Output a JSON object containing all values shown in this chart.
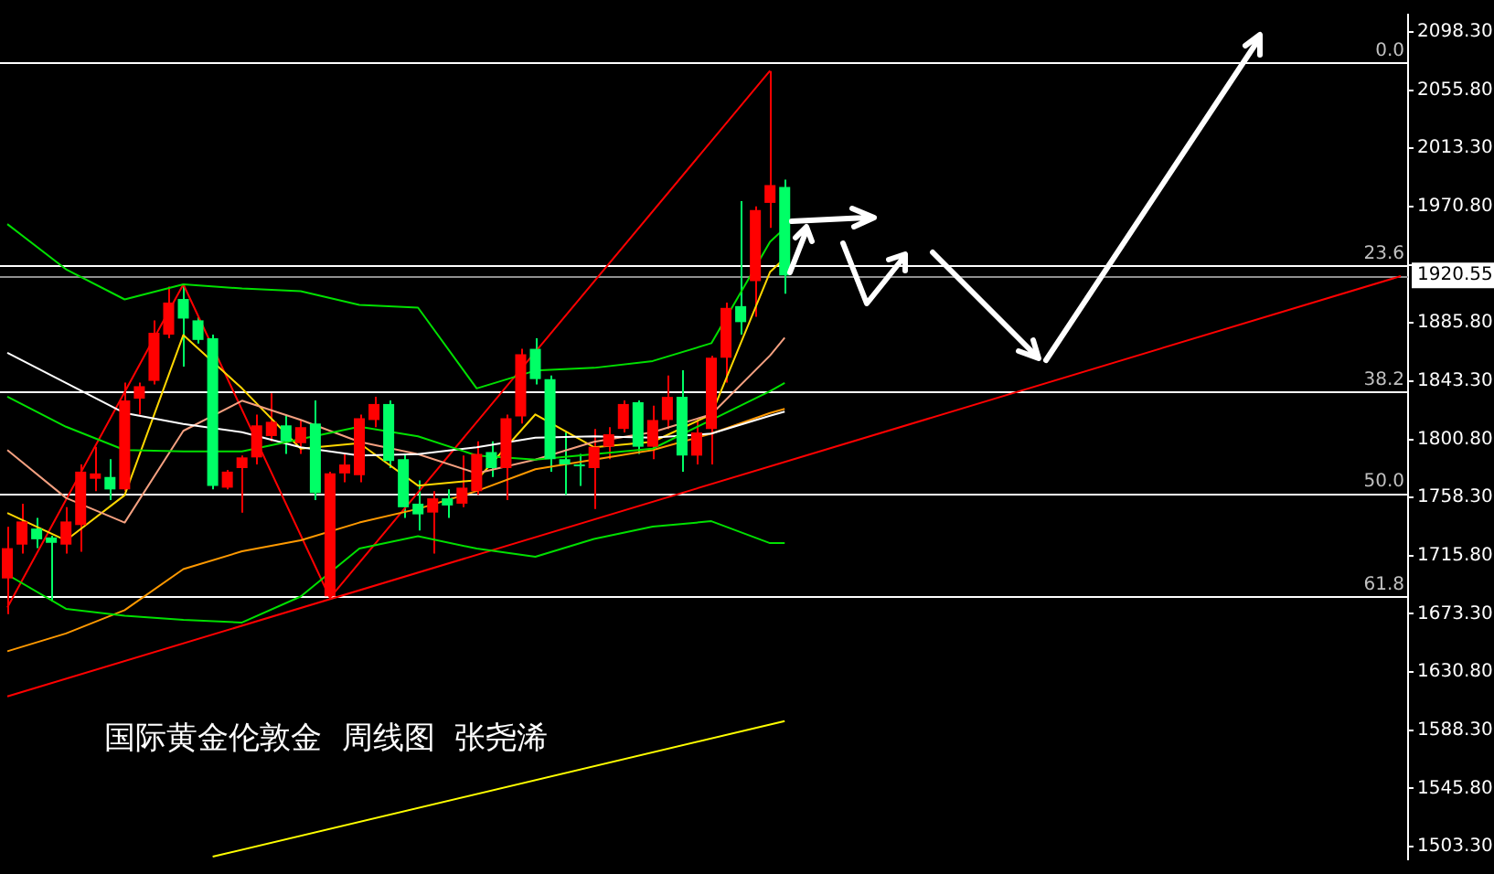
{
  "chart_data": {
    "type": "candlestick",
    "title": "国际黄金伦敦金  周线图  张尧浠",
    "categories": [
      null,
      null,
      null,
      null,
      null,
      null,
      null,
      null,
      null,
      null,
      null,
      null,
      null,
      null,
      null,
      null,
      null,
      null,
      null,
      null,
      null,
      null,
      null,
      null,
      null,
      null,
      null,
      null,
      null,
      null,
      null,
      null,
      null,
      null,
      null,
      null,
      null,
      null,
      null,
      null,
      null,
      null,
      null,
      null,
      null,
      null,
      null,
      null,
      null,
      null,
      null,
      null,
      null,
      null,
      null,
      null,
      null,
      null,
      null,
      null,
      null,
      null,
      null,
      null,
      null,
      null,
      null,
      null,
      null,
      null,
      null,
      null,
      null,
      null,
      null,
      null,
      null,
      null,
      null,
      null,
      null,
      null,
      null,
      null,
      null,
      null,
      null,
      null,
      null,
      null,
      null,
      null,
      null,
      null,
      null,
      null
    ],
    "ohlc": [
      [
        1699.2,
        1736.9,
        1673.2,
        1721.3
      ],
      [
        1723.9,
        1753.8,
        1717.4,
        1740.8
      ],
      [
        1735.6,
        1743.4,
        1721.3,
        1727.8
      ],
      [
        1729.1,
        1730.4,
        1682.3,
        1725.2
      ],
      [
        1723.9,
        1751.2,
        1717.4,
        1740.8
      ],
      [
        1738.2,
        1782.4,
        1718.7,
        1777.2
      ],
      [
        1772.0,
        1795.4,
        1762.9,
        1775.9
      ],
      [
        1773.3,
        1786.3,
        1756.4,
        1764.2
      ],
      [
        1764.2,
        1842.2,
        1762.9,
        1829.2
      ],
      [
        1830.5,
        1842.2,
        1818.8,
        1839.6
      ],
      [
        1843.5,
        1887.7,
        1840.9,
        1878.6
      ],
      [
        1877.3,
        1912.4,
        1874.7,
        1900.7
      ],
      [
        1903.3,
        1913.7,
        1853.9,
        1889.0
      ],
      [
        1887.7,
        1890.3,
        1870.8,
        1873.4
      ],
      [
        1874.7,
        1877.3,
        1764.2,
        1766.8
      ],
      [
        1765.5,
        1778.5,
        1764.2,
        1777.2
      ],
      [
        1779.8,
        1788.9,
        1747.3,
        1787.6
      ],
      [
        1787.6,
        1818.8,
        1782.4,
        1811.0
      ],
      [
        1803.2,
        1834.4,
        1799.3,
        1813.6
      ],
      [
        1811.0,
        1818.8,
        1790.2,
        1799.3
      ],
      [
        1798.0,
        1814.9,
        1790.2,
        1809.7
      ],
      [
        1812.3,
        1829.2,
        1756.4,
        1761.6
      ],
      [
        1686.2,
        1777.2,
        1684.9,
        1775.9
      ],
      [
        1775.9,
        1790.2,
        1769.4,
        1782.4
      ],
      [
        1774.6,
        1818.8,
        1769.4,
        1816.2
      ],
      [
        1814.9,
        1831.8,
        1809.7,
        1826.6
      ],
      [
        1826.6,
        1829.2,
        1779.8,
        1785.0
      ],
      [
        1786.3,
        1790.2,
        1743.4,
        1751.2
      ],
      [
        1753.8,
        1770.7,
        1734.3,
        1746.0
      ],
      [
        1747.3,
        1762.9,
        1717.4,
        1757.7
      ],
      [
        1757.7,
        1764.2,
        1743.4,
        1752.5
      ],
      [
        1753.8,
        1788.9,
        1751.2,
        1765.5
      ],
      [
        1762.9,
        1799.3,
        1760.3,
        1790.2
      ],
      [
        1791.5,
        1799.3,
        1773.3,
        1779.8
      ],
      [
        1779.8,
        1818.8,
        1756.4,
        1816.2
      ],
      [
        1817.5,
        1866.9,
        1812.3,
        1863.0
      ],
      [
        1866.9,
        1874.7,
        1840.9,
        1844.8
      ],
      [
        1844.8,
        1847.4,
        1777.2,
        1786.3
      ],
      [
        1786.3,
        1805.8,
        1760.3,
        1782.4
      ],
      [
        1782.4,
        1790.2,
        1766.8,
        1781.1
      ],
      [
        1779.8,
        1808.4,
        1749.9,
        1795.4
      ],
      [
        1795.4,
        1809.7,
        1786.3,
        1804.5
      ],
      [
        1808.4,
        1829.2,
        1805.8,
        1826.6
      ],
      [
        1827.9,
        1829.2,
        1790.2,
        1795.4
      ],
      [
        1795.4,
        1825.3,
        1786.3,
        1814.9
      ],
      [
        1814.9,
        1847.4,
        1808.4,
        1831.8
      ],
      [
        1831.8,
        1851.3,
        1777.2,
        1788.9
      ],
      [
        1788.9,
        1814.9,
        1782.4,
        1805.8
      ],
      [
        1808.4,
        1861.7,
        1782.4,
        1860.4
      ],
      [
        1860.4,
        1900.7,
        1842.2,
        1896.8
      ],
      [
        1898.1,
        1974.8,
        1877.3,
        1886.4
      ],
      [
        1916.3,
        1970.9,
        1890.3,
        1968.3
      ],
      [
        1973.5,
        2069.7,
        1955.3,
        1986.5
      ],
      [
        1985.2,
        1990.4,
        1907.2,
        1920.55
      ],
      null,
      null,
      null,
      null,
      null,
      null,
      null,
      null,
      null,
      null,
      null,
      null,
      null,
      null,
      null,
      null,
      null,
      null,
      null,
      null,
      null,
      null,
      null,
      null,
      null,
      null,
      null,
      null,
      null,
      null,
      null,
      null,
      null,
      null,
      null,
      null,
      null,
      null,
      null,
      null,
      null,
      null
    ],
    "colors": [
      "#ff0000",
      "#ff0000",
      "#00ff66",
      "#00ff66",
      "#ff0000",
      "#ff0000",
      "#ff0000",
      "#00ff66",
      "#ff0000",
      "#ff0000",
      "#ff0000",
      "#ff0000",
      "#00ff66",
      "#00ff66",
      "#00ff66",
      "#ff0000",
      "#ff0000",
      "#ff0000",
      "#ff0000",
      "#00ff66",
      "#ff0000",
      "#00ff66",
      "#ff0000",
      "#ff0000",
      "#ff0000",
      "#ff0000",
      "#00ff66",
      "#00ff66",
      "#00ff66",
      "#ff0000",
      "#00ff66",
      "#ff0000",
      "#ff0000",
      "#00ff66",
      "#ff0000",
      "#ff0000",
      "#00ff66",
      "#00ff66",
      "#00ff66",
      "#00ff66",
      "#ff0000",
      "#ff0000",
      "#ff0000",
      "#00ff66",
      "#ff0000",
      "#ff0000",
      "#00ff66",
      "#ff0000",
      "#ff0000",
      "#ff0000",
      "#00ff66",
      "#ff0000",
      "#ff0000",
      "#00ff66",
      null,
      null,
      null,
      null,
      null,
      null,
      null,
      null,
      null,
      null,
      null,
      null,
      null,
      null,
      null,
      null,
      null,
      null,
      null,
      null,
      null,
      null,
      null,
      null,
      null,
      null,
      null,
      null,
      null,
      null,
      null,
      null,
      null,
      null,
      null,
      null,
      null,
      null,
      null,
      null,
      null,
      null
    ],
    "series": [
      {
        "type": "line",
        "color": "#00e000",
        "values": [
          1958,
          null,
          null,
          null,
          1925,
          null,
          null,
          null,
          1903,
          null,
          null,
          null,
          1914,
          null,
          null,
          null,
          1911,
          null,
          null,
          null,
          1909,
          null,
          null,
          null,
          1899,
          null,
          null,
          null,
          1897,
          null,
          null,
          null,
          1838,
          null,
          null,
          null,
          1851,
          null,
          null,
          null,
          1853,
          null,
          null,
          null,
          1858,
          null,
          null,
          null,
          1871,
          null,
          null,
          null,
          1945,
          1955,
          null,
          null,
          null,
          null,
          null,
          null,
          null,
          null,
          null,
          null,
          null,
          null,
          null,
          null,
          null,
          null,
          null,
          null,
          null,
          null,
          null,
          null,
          null,
          null,
          null,
          null,
          null,
          null,
          null,
          null,
          null,
          null,
          null,
          null,
          null,
          null,
          null,
          null,
          null,
          null,
          null,
          null
        ]
      },
      {
        "type": "line",
        "color": "#00e000",
        "values": [
          1702,
          null,
          null,
          null,
          1677,
          null,
          null,
          null,
          1672,
          null,
          null,
          null,
          1669,
          null,
          null,
          null,
          1667,
          null,
          null,
          null,
          1686,
          null,
          null,
          null,
          1721,
          null,
          null,
          null,
          1730,
          null,
          null,
          null,
          1721,
          null,
          null,
          null,
          1715,
          null,
          null,
          null,
          1728,
          null,
          null,
          null,
          1737,
          null,
          null,
          null,
          1741,
          null,
          null,
          null,
          1725,
          1725,
          null,
          null,
          null,
          null,
          null,
          null,
          null,
          null,
          null,
          null,
          null,
          null,
          null,
          null,
          null,
          null,
          null,
          null,
          null,
          null,
          null,
          null,
          null,
          null,
          null,
          null,
          null,
          null,
          null,
          null,
          null,
          null,
          null,
          null,
          null,
          null,
          null,
          null,
          null,
          null,
          null,
          null
        ]
      },
      {
        "type": "line",
        "color": "#00e000",
        "values": [
          1832,
          null,
          null,
          null,
          1810,
          null,
          null,
          null,
          1793,
          null,
          null,
          null,
          1792,
          null,
          null,
          null,
          1792,
          null,
          null,
          null,
          1801,
          null,
          null,
          null,
          1810,
          null,
          null,
          null,
          1803,
          null,
          null,
          null,
          1789,
          null,
          null,
          null,
          1786,
          null,
          null,
          null,
          1790,
          null,
          null,
          null,
          1794,
          null,
          null,
          null,
          1815,
          null,
          null,
          null,
          1836,
          1842,
          null,
          null,
          null,
          null,
          null,
          null,
          null,
          null,
          null,
          null,
          null,
          null,
          null,
          null,
          null,
          null,
          null,
          null,
          null,
          null,
          null,
          null,
          null,
          null,
          null,
          null,
          null,
          null,
          null,
          null,
          null,
          null,
          null,
          null,
          null,
          null,
          null,
          null,
          null,
          null,
          null,
          null
        ]
      },
      {
        "type": "line",
        "color": "#ffffff",
        "values": [
          1864,
          null,
          null,
          null,
          1842,
          null,
          null,
          null,
          1820,
          null,
          null,
          null,
          1812,
          null,
          null,
          null,
          1806,
          null,
          null,
          null,
          1795,
          null,
          null,
          null,
          1789,
          null,
          null,
          null,
          1790,
          null,
          null,
          null,
          1795,
          null,
          null,
          null,
          1802,
          null,
          null,
          null,
          1803,
          null,
          null,
          null,
          1802,
          null,
          null,
          null,
          1805,
          null,
          null,
          null,
          1818,
          1821,
          null,
          null,
          null,
          null,
          null,
          null,
          null,
          null,
          null,
          null,
          null,
          null,
          null,
          null,
          null,
          null,
          null,
          null,
          null,
          null,
          null,
          null,
          null,
          null,
          null,
          null,
          null,
          null,
          null,
          null,
          null,
          null,
          null,
          null,
          null,
          null,
          null,
          null,
          null,
          null,
          null,
          null
        ]
      },
      {
        "type": "line",
        "color": "#f4a080",
        "values": [
          1793,
          null,
          null,
          null,
          1758,
          null,
          null,
          null,
          1740,
          null,
          null,
          null,
          1807,
          null,
          null,
          null,
          1829,
          null,
          null,
          null,
          1815,
          null,
          null,
          null,
          1799,
          null,
          null,
          null,
          1790,
          null,
          null,
          null,
          1776,
          null,
          null,
          null,
          1786,
          null,
          null,
          null,
          1799,
          null,
          null,
          null,
          1806,
          null,
          null,
          null,
          1819,
          null,
          null,
          null,
          1862,
          1875,
          null,
          null,
          null,
          null,
          null,
          null,
          null,
          null,
          null,
          null,
          null,
          null,
          null,
          null,
          null,
          null,
          null,
          null,
          null,
          null,
          null,
          null,
          null,
          null,
          null,
          null,
          null,
          null,
          null,
          null,
          null,
          null,
          null,
          null,
          null,
          null,
          null,
          null,
          null,
          null,
          null,
          null
        ]
      },
      {
        "type": "line",
        "color": "#ffd700",
        "values": [
          1747,
          null,
          null,
          null,
          1727,
          null,
          null,
          null,
          1760,
          null,
          null,
          null,
          1877,
          null,
          null,
          null,
          1838,
          null,
          null,
          null,
          1794,
          null,
          null,
          null,
          1798,
          null,
          null,
          null,
          1767,
          null,
          null,
          null,
          1771,
          null,
          null,
          null,
          1819,
          null,
          null,
          null,
          1795,
          null,
          null,
          null,
          1799,
          null,
          null,
          null,
          1819,
          null,
          null,
          null,
          1923,
          1933,
          null,
          null,
          null,
          null,
          null,
          null,
          null,
          null,
          null,
          null,
          null,
          null,
          null,
          null,
          null,
          null,
          null,
          null,
          null,
          null,
          null,
          null,
          null,
          null,
          null,
          null,
          null,
          null,
          null,
          null,
          null,
          null,
          null,
          null,
          null,
          null,
          null,
          null,
          null,
          null,
          null,
          null
        ]
      },
      {
        "type": "line",
        "color": "#ff9900",
        "values": [
          1646,
          null,
          null,
          null,
          1659,
          null,
          null,
          null,
          1676,
          null,
          null,
          null,
          1706,
          null,
          null,
          null,
          1719,
          null,
          null,
          null,
          1727,
          null,
          null,
          null,
          1740,
          null,
          null,
          null,
          1750,
          null,
          null,
          null,
          1763,
          null,
          null,
          null,
          1779,
          null,
          null,
          null,
          1786,
          null,
          null,
          null,
          1793,
          null,
          null,
          null,
          1805,
          null,
          null,
          null,
          1820,
          1823,
          null,
          null,
          null,
          null,
          null,
          null,
          null,
          null,
          null,
          null,
          null,
          null,
          null,
          null,
          null,
          null,
          null,
          null,
          null,
          null,
          null,
          null,
          null,
          null,
          null,
          null,
          null,
          null,
          null,
          null,
          null,
          null,
          null,
          null,
          null,
          null,
          null,
          null,
          null,
          null,
          null,
          null
        ]
      },
      {
        "type": "line",
        "color": "#ffff00",
        "values": [
          null,
          null,
          null,
          null,
          null,
          null,
          null,
          null,
          null,
          null,
          null,
          null,
          null,
          null,
          1496,
          null,
          null,
          null,
          null,
          null,
          null,
          null,
          null,
          null,
          null,
          null,
          null,
          null,
          null,
          null,
          null,
          null,
          null,
          null,
          null,
          null,
          null,
          null,
          null,
          null,
          null,
          null,
          null,
          null,
          null,
          null,
          null,
          null,
          null,
          null,
          null,
          null,
          null,
          1595,
          null,
          null,
          null,
          null,
          null,
          null,
          null,
          null,
          null,
          null,
          null,
          null,
          null,
          null,
          null,
          null,
          null,
          null,
          null,
          null,
          null,
          null,
          null,
          null,
          null,
          null,
          null,
          null,
          null,
          null,
          null,
          null,
          null,
          null,
          null,
          null,
          null,
          null,
          null,
          null,
          null,
          null
        ]
      },
      {
        "type": "line",
        "color": "#ff0000",
        "values": [
          1678,
          null,
          null,
          null,
          null,
          null,
          null,
          null,
          null,
          null,
          null,
          null,
          1914,
          null,
          null,
          null,
          null,
          null,
          null,
          null,
          null,
          null,
          1685,
          null,
          null,
          null,
          null,
          null,
          null,
          null,
          null,
          null,
          null,
          null,
          null,
          null,
          null,
          null,
          null,
          null,
          null,
          null,
          null,
          null,
          null,
          null,
          null,
          null,
          null,
          null,
          null,
          null,
          2070,
          null,
          null,
          null,
          null,
          null,
          null,
          null,
          null,
          null,
          null,
          null,
          null,
          null,
          null,
          null,
          null,
          null,
          null,
          null,
          null,
          null,
          null,
          null,
          null,
          null,
          null,
          null,
          null,
          null,
          null,
          null,
          null,
          null,
          null,
          null,
          null,
          null,
          null,
          null,
          null,
          null,
          null,
          null
        ]
      },
      {
        "type": "line",
        "color": "#ff0000",
        "values": [
          1613,
          null,
          null,
          null,
          null,
          null,
          null,
          null,
          null,
          null,
          null,
          null,
          null,
          null,
          null,
          null,
          null,
          null,
          null,
          null,
          null,
          null,
          null,
          null,
          null,
          null,
          null,
          null,
          null,
          null,
          null,
          null,
          null,
          null,
          null,
          null,
          null,
          null,
          null,
          null,
          null,
          null,
          null,
          null,
          null,
          null,
          null,
          null,
          null,
          null,
          null,
          null,
          null,
          null,
          null,
          null,
          null,
          null,
          null,
          null,
          null,
          null,
          null,
          null,
          null,
          null,
          null,
          null,
          null,
          null,
          null,
          null,
          null,
          null,
          null,
          null,
          null,
          null,
          null,
          null,
          null,
          null,
          null,
          null,
          null,
          null,
          null,
          null,
          null,
          null,
          null,
          null,
          null,
          null,
          null,
          1920
        ]
      }
    ],
    "ylim": [
      1494,
      2111
    ],
    "yticks": [
      {
        "value": 2098.3,
        "label": "2098.30"
      },
      {
        "value": 2055.8,
        "label": "2055.80"
      },
      {
        "value": 2013.3,
        "label": "2013.30"
      },
      {
        "value": 1970.8,
        "label": "1970.80"
      },
      {
        "value": 1928.3,
        "label": null
      },
      {
        "value": 1885.8,
        "label": "1885.80"
      },
      {
        "value": 1843.3,
        "label": "1843.30"
      },
      {
        "value": 1800.8,
        "label": "1800.80"
      },
      {
        "value": 1758.3,
        "label": "1758.30"
      },
      {
        "value": 1715.8,
        "label": "1715.80"
      },
      {
        "value": 1673.3,
        "label": "1673.30"
      },
      {
        "value": 1630.8,
        "label": "1630.80"
      },
      {
        "value": 1588.3,
        "label": "1588.30"
      },
      {
        "value": 1545.8,
        "label": "1545.80"
      },
      {
        "value": 1503.3,
        "label": "1503.30"
      }
    ],
    "ref_lines": [
      {
        "axis": "y",
        "value": 2076.2
      },
      {
        "axis": "y",
        "value": 1928.0
      },
      {
        "axis": "y",
        "value": 1835.7
      },
      {
        "axis": "y",
        "value": 1761.6
      },
      {
        "axis": "y",
        "value": 1686.2
      },
      {
        "axis": "y",
        "value": 1920.55,
        "label": "1920.55",
        "color": "#909090"
      }
    ],
    "annotations": [
      {
        "text": "0.0",
        "y": 2076.2
      },
      {
        "text": "23.6",
        "y": 1928.0
      },
      {
        "text": "38.2",
        "y": 1835.7
      },
      {
        "text": "50.0",
        "y": 1761.6
      },
      {
        "text": "61.8",
        "y": 1686.2
      }
    ],
    "tick_labels": "y",
    "grid": false,
    "legend": false,
    "marker": "none"
  }
}
